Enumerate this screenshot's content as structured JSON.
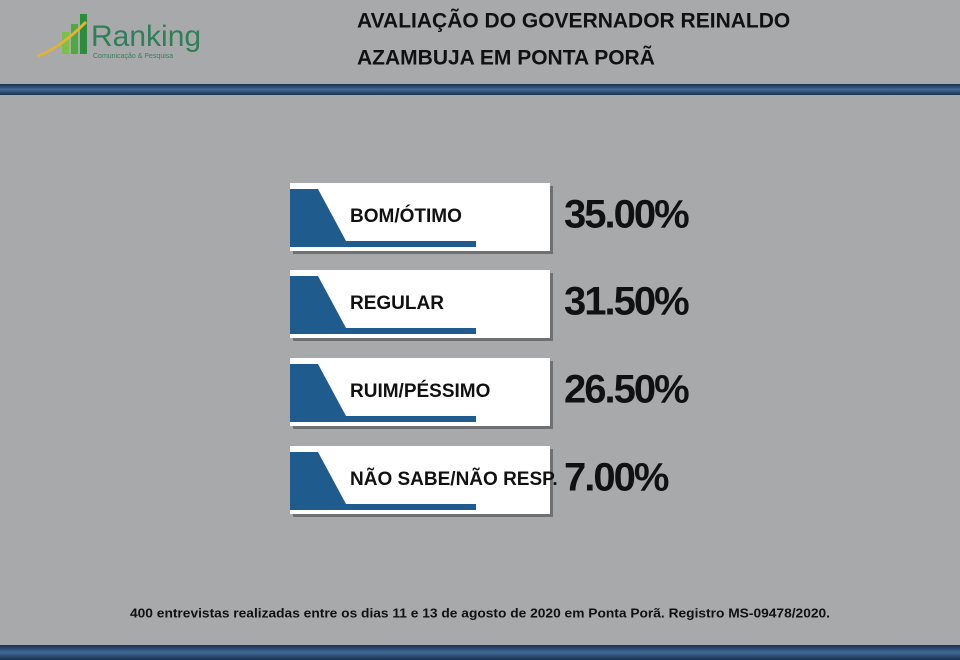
{
  "logo": {
    "name": "Ranking",
    "tagline": "Comunicação & Pesquisa"
  },
  "title": [
    "AVALIAÇÃO DO GOVERNADOR REINALDO",
    "AZAMBUJA EM PONTA PORÃ"
  ],
  "items": [
    {
      "label": "BOM/ÓTIMO",
      "value": "35.00%"
    },
    {
      "label": "REGULAR",
      "value": "31.50%"
    },
    {
      "label": "RUIM/PÉSSIMO",
      "value": "26.50%"
    },
    {
      "label": "NÃO SABE/NÃO RESP.",
      "value": "7.00%"
    }
  ],
  "footer": "400 entrevistas realizadas entre os dias 11 e 13 de agosto de 2020 em Ponta Porã. Registro MS-09478/2020."
}
